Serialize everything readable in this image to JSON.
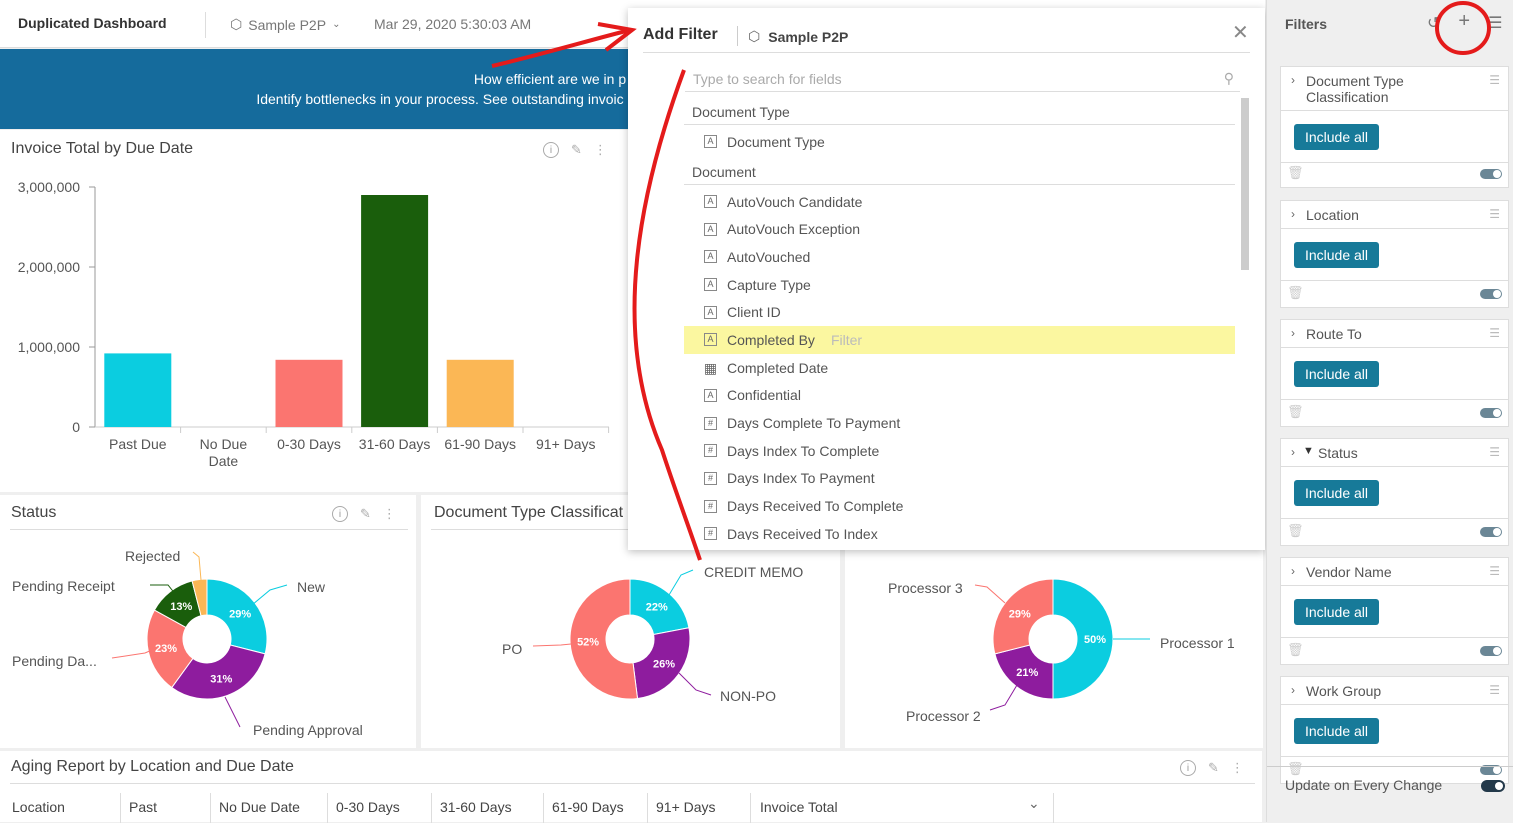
{
  "topbar": {
    "title": "Duplicated Dashboard",
    "datasource": "Sample P2P",
    "timestamp": "Mar 29, 2020 5:30:03 AM"
  },
  "banner": {
    "line1": "How efficient are we in p",
    "line2": "Identify bottlenecks in your process.  See outstanding invoic"
  },
  "invoice_widget": {
    "title": "Invoice Total by Due Date"
  },
  "status_widget": {
    "title": "Status",
    "labels": [
      "Rejected",
      "Pending Receipt",
      "New",
      "Pending Da...",
      "Pending Approval"
    ]
  },
  "doctype_widget": {
    "title": "Document Type Classificat",
    "labels": [
      "CREDIT MEMO",
      "PO",
      "NON-PO"
    ]
  },
  "processor_widget": {
    "labels": [
      "Processor 3",
      "Processor 1",
      "Processor 2"
    ]
  },
  "aging_widget": {
    "title": "Aging Report by Location and Due Date",
    "columns": [
      "Location",
      "Past",
      "No Due Date",
      "0-30 Days",
      "31-60 Days",
      "61-90 Days",
      "91+ Days",
      "Invoice Total"
    ]
  },
  "chart_data": [
    {
      "type": "bar",
      "title": "Invoice Total by Due Date",
      "categories": [
        "Past Due",
        "No Due Date",
        "0-30 Days",
        "31-60 Days",
        "61-90 Days",
        "91+ Days"
      ],
      "values": [
        920000,
        0,
        840000,
        2900000,
        840000,
        0
      ],
      "colors": [
        "#0bcde0",
        "#0bcde0",
        "#fb7570",
        "#1a5e0c",
        "#fbb755",
        "#0bcde0"
      ],
      "yticks": [
        "3,000,000",
        "2,000,000",
        "1,000,000",
        "0"
      ],
      "ylim": [
        0,
        3000000
      ]
    },
    {
      "type": "pie",
      "title": "Status",
      "series": [
        {
          "name": "New",
          "value": 29,
          "label": "29%",
          "color": "#0bcde0"
        },
        {
          "name": "Pending Approval",
          "value": 31,
          "label": "31%",
          "color": "#8e1c9e"
        },
        {
          "name": "Pending Da...",
          "value": 23,
          "label": "23%",
          "color": "#fb7570"
        },
        {
          "name": "Pending Receipt",
          "value": 13,
          "label": "13%",
          "color": "#1a5e0c"
        },
        {
          "name": "Rejected",
          "value": 4,
          "label": "",
          "color": "#fbb755"
        }
      ]
    },
    {
      "type": "pie",
      "title": "Document Type Classificat",
      "series": [
        {
          "name": "CREDIT MEMO",
          "value": 22,
          "label": "22%",
          "color": "#0bcde0"
        },
        {
          "name": "NON-PO",
          "value": 26,
          "label": "26%",
          "color": "#8e1c9e"
        },
        {
          "name": "PO",
          "value": 52,
          "label": "52%",
          "color": "#fb7570"
        }
      ]
    },
    {
      "type": "pie",
      "series": [
        {
          "name": "Processor 1",
          "value": 50,
          "label": "50%",
          "color": "#0bcde0"
        },
        {
          "name": "Processor 2",
          "value": 21,
          "label": "21%",
          "color": "#8e1c9e"
        },
        {
          "name": "Processor 3",
          "value": 29,
          "label": "29%",
          "color": "#fb7570"
        }
      ]
    }
  ],
  "modal": {
    "title": "Add Filter",
    "datasource": "Sample P2P",
    "search_placeholder": "Type to search for fields",
    "groups": [
      {
        "name": "Document Type",
        "fields": [
          {
            "label": "Document Type",
            "type": "A"
          }
        ]
      },
      {
        "name": "Document",
        "fields": [
          {
            "label": "AutoVouch Candidate",
            "type": "A"
          },
          {
            "label": "AutoVouch Exception",
            "type": "A"
          },
          {
            "label": "AutoVouched",
            "type": "A"
          },
          {
            "label": "Capture Type",
            "type": "A"
          },
          {
            "label": "Client ID",
            "type": "A"
          },
          {
            "label": "Completed By",
            "type": "A",
            "highlighted": true,
            "action": "Filter"
          },
          {
            "label": "Completed Date",
            "type": "date"
          },
          {
            "label": "Confidential",
            "type": "A"
          },
          {
            "label": "Days Complete To Payment",
            "type": "#"
          },
          {
            "label": "Days Index To Complete",
            "type": "#"
          },
          {
            "label": "Days Index To Payment",
            "type": "#"
          },
          {
            "label": "Days Received To Complete",
            "type": "#"
          },
          {
            "label": "Days Received To Index",
            "type": "#"
          }
        ]
      }
    ]
  },
  "sidebar": {
    "title": "Filters",
    "include_label": "Include all",
    "filters": [
      {
        "name": "Document Type Classification",
        "filtered": false
      },
      {
        "name": "Location",
        "filtered": false
      },
      {
        "name": "Route To",
        "filtered": false
      },
      {
        "name": "Status",
        "filtered": true
      },
      {
        "name": "Vendor Name",
        "filtered": false
      },
      {
        "name": "Work Group",
        "filtered": false
      }
    ],
    "update_label": "Update on Every Change"
  }
}
